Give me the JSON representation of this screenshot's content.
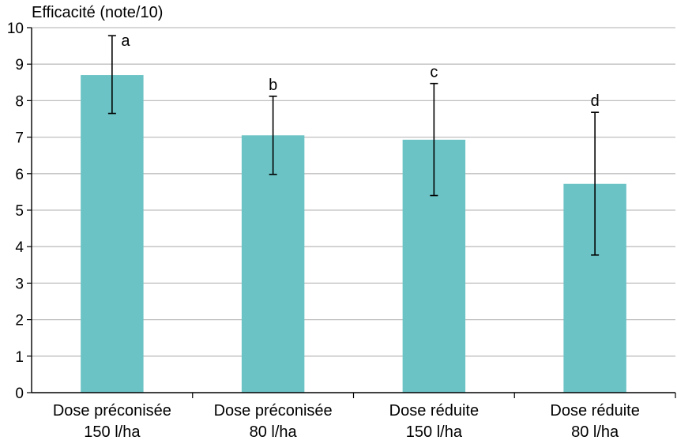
{
  "chart_data": {
    "type": "bar",
    "ylabel": "Efficacité (note/10)",
    "ylim": [
      0,
      10
    ],
    "yticks": [
      0,
      1,
      2,
      3,
      4,
      5,
      6,
      7,
      8,
      9,
      10
    ],
    "grid": true,
    "categories": [
      [
        "Dose préconisée",
        "150 l/ha"
      ],
      [
        "Dose préconisée",
        "80 l/ha"
      ],
      [
        "Dose réduite",
        "150 l/ha"
      ],
      [
        "Dose réduite",
        "80 l/ha"
      ]
    ],
    "values": [
      8.7,
      7.05,
      6.93,
      5.72
    ],
    "error_low": [
      7.65,
      5.98,
      5.4,
      3.77
    ],
    "error_high": [
      9.78,
      8.12,
      8.47,
      7.68
    ],
    "significance": [
      "a",
      "b",
      "c",
      "d"
    ],
    "bar_color": "#6cc3c5",
    "grid_color": "#bfbfbf"
  }
}
